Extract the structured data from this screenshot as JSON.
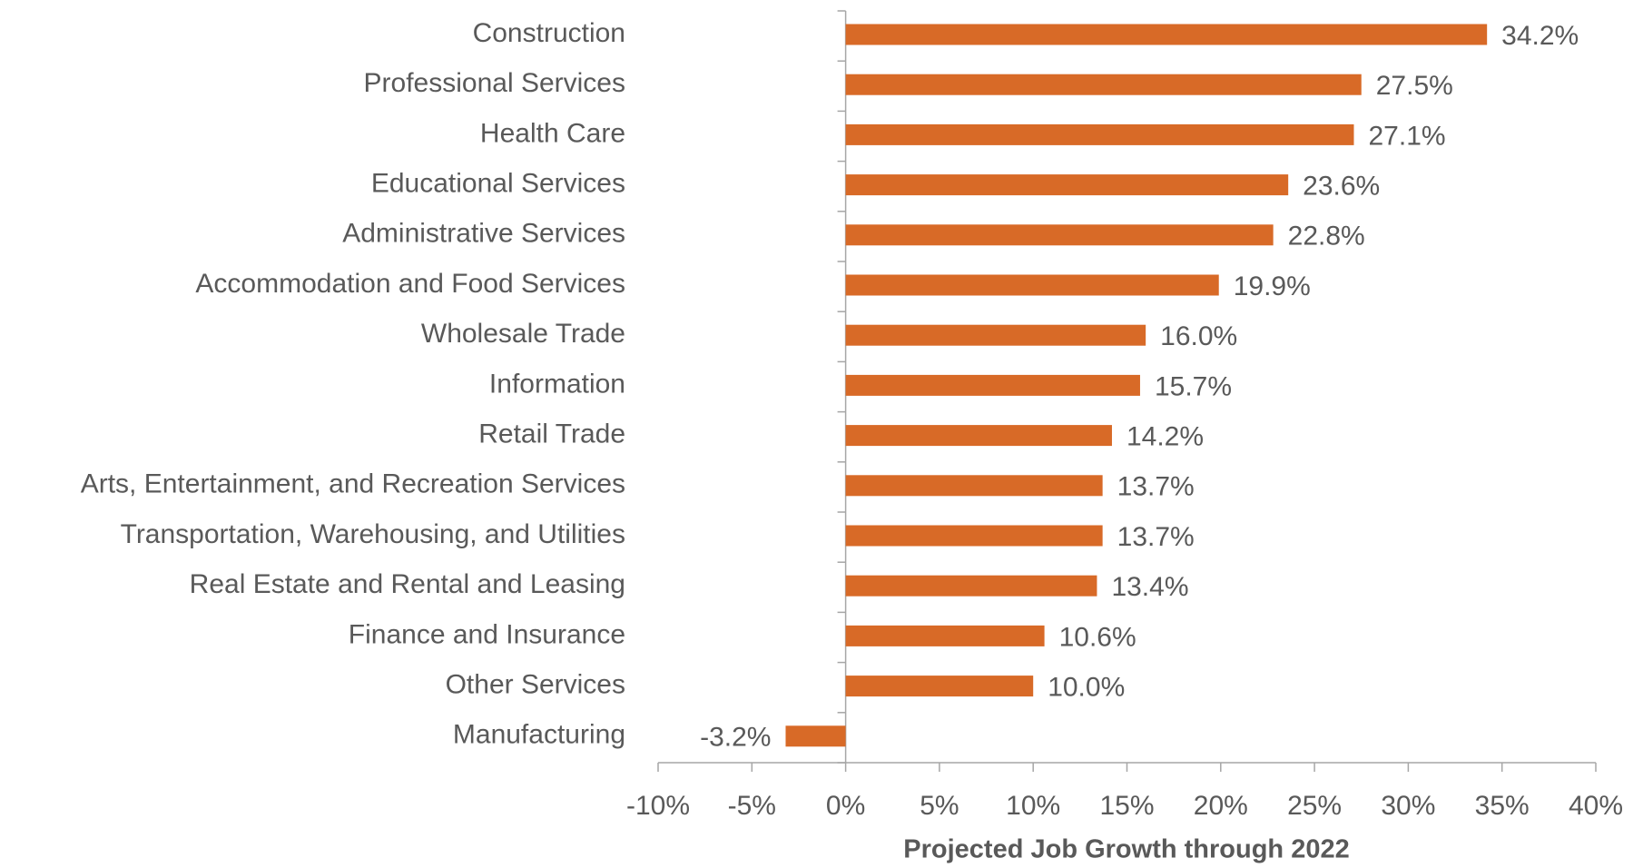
{
  "chart_data": {
    "type": "bar",
    "orientation": "horizontal",
    "x_label": "Projected Job Growth through 2022",
    "categories": [
      "Construction",
      "Professional Services",
      "Health Care",
      "Educational Services",
      "Administrative Services",
      "Accommodation and Food Services",
      "Wholesale Trade",
      "Information",
      "Retail Trade",
      "Arts, Entertainment, and Recreation Services",
      "Transportation, Warehousing, and Utilities",
      "Real Estate and Rental and Leasing",
      "Finance and Insurance",
      "Other Services",
      "Manufacturing"
    ],
    "values": [
      34.2,
      27.5,
      27.1,
      23.6,
      22.8,
      19.9,
      16.0,
      15.7,
      14.2,
      13.7,
      13.7,
      13.4,
      10.6,
      10.0,
      -3.2
    ],
    "value_labels": [
      "34.2%",
      "27.5%",
      "27.1%",
      "23.6%",
      "22.8%",
      "19.9%",
      "16.0%",
      "15.7%",
      "14.2%",
      "13.7%",
      "13.7%",
      "13.4%",
      "10.6%",
      "10.0%",
      "-3.2%"
    ],
    "color": "#d86a27",
    "xlim": [
      -10,
      40
    ],
    "xticks": [
      {
        "value": -10,
        "label": "-10%"
      },
      {
        "value": -5,
        "label": "-5%"
      },
      {
        "value": 0,
        "label": "0%"
      },
      {
        "value": 5,
        "label": "5%"
      },
      {
        "value": 10,
        "label": "10%"
      },
      {
        "value": 15,
        "label": "15%"
      },
      {
        "value": 20,
        "label": "20%"
      },
      {
        "value": 25,
        "label": "25%"
      },
      {
        "value": 30,
        "label": "30%"
      },
      {
        "value": 35,
        "label": "35%"
      },
      {
        "value": 40,
        "label": "40%"
      }
    ],
    "grid": false
  }
}
